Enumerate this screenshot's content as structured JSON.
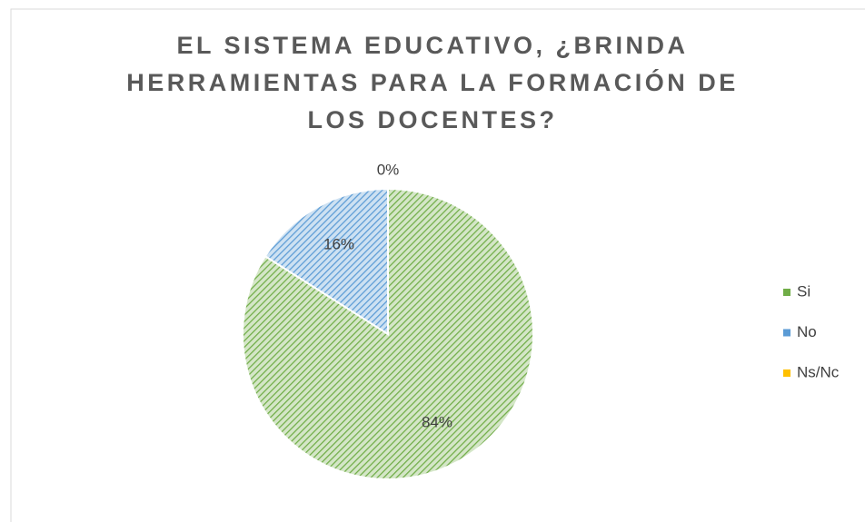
{
  "chart_data": {
    "type": "pie",
    "title": "EL SISTEMA EDUCATIVO, ¿BRINDA HERRAMIENTAS PARA LA FORMACIÓN DE LOS DOCENTES?",
    "categories": [
      "Si",
      "No",
      "Ns/Nc"
    ],
    "values": [
      84,
      16,
      0
    ],
    "value_labels": [
      "84%",
      "16%",
      "0%"
    ],
    "colors": [
      "#70ad47",
      "#5b9bd5",
      "#ffc000"
    ],
    "legend": "right"
  }
}
